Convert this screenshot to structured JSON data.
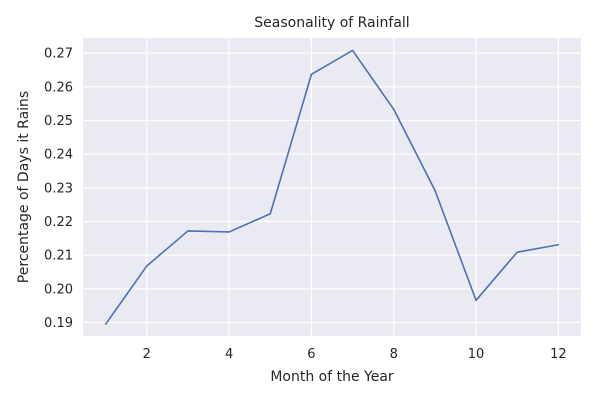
{
  "chart_data": {
    "type": "line",
    "title": "Seasonality of Rainfall",
    "xlabel": "Month of the Year",
    "ylabel": "Percentage of Days it Rains",
    "xlim": [
      0.45,
      12.55
    ],
    "ylim": [
      0.186,
      0.2745
    ],
    "grid": true,
    "x_ticks": [
      2,
      4,
      6,
      8,
      10,
      12
    ],
    "x_tick_labels": [
      "2",
      "4",
      "6",
      "8",
      "10",
      "12"
    ],
    "y_ticks": [
      0.19,
      0.2,
      0.21,
      0.22,
      0.23,
      0.24,
      0.25,
      0.26,
      0.27
    ],
    "y_tick_labels": [
      "0.19",
      "0.20",
      "0.21",
      "0.22",
      "0.23",
      "0.24",
      "0.25",
      "0.26",
      "0.27"
    ],
    "series": [
      {
        "name": "rainfall",
        "color": "#4c72b0",
        "x": [
          1,
          2,
          3,
          4,
          5,
          6,
          7,
          8,
          9,
          10,
          11,
          12
        ],
        "values": [
          0.1895,
          0.2068,
          0.2172,
          0.2169,
          0.2223,
          0.2637,
          0.2708,
          0.2533,
          0.2293,
          0.1966,
          0.2109,
          0.2131
        ]
      }
    ]
  }
}
